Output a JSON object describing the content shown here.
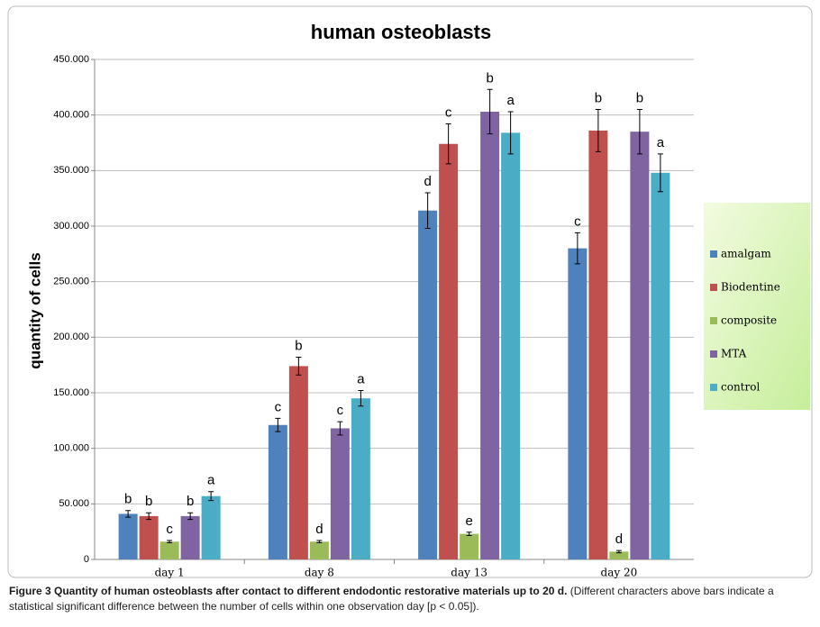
{
  "chart_data": {
    "type": "bar",
    "title": "human osteoblasts",
    "y_label": "quantity of cells",
    "categories": [
      "day 1",
      "day 8",
      "day 13",
      "day 20"
    ],
    "series": [
      {
        "name": "amalgam",
        "color": "#4f81bd",
        "values": [
          41000,
          121000,
          314000,
          280000
        ],
        "errors": [
          3000,
          6000,
          16000,
          14000
        ],
        "significance": [
          "b",
          "c",
          "d",
          "c"
        ]
      },
      {
        "name": "Biodentine",
        "color": "#c0504d",
        "values": [
          39000,
          174000,
          374000,
          386000
        ],
        "errors": [
          3000,
          8000,
          18000,
          19000
        ],
        "significance": [
          "b",
          "b",
          "c",
          "b"
        ]
      },
      {
        "name": "composite",
        "color": "#9bbb59",
        "values": [
          16000,
          16000,
          23000,
          7000
        ],
        "errors": [
          1000,
          1000,
          1500,
          1000
        ],
        "significance": [
          "c",
          "d",
          "e",
          "d"
        ]
      },
      {
        "name": "MTA",
        "color": "#8064a2",
        "values": [
          39000,
          118000,
          403000,
          385000
        ],
        "errors": [
          3000,
          6000,
          20000,
          20000
        ],
        "significance": [
          "b",
          "c",
          "b",
          "b"
        ]
      },
      {
        "name": "control",
        "color": "#4bacc6",
        "values": [
          57000,
          145000,
          384000,
          348000
        ],
        "errors": [
          4000,
          7000,
          19000,
          17000
        ],
        "significance": [
          "a",
          "a",
          "a",
          "a"
        ]
      }
    ],
    "ylim": [
      0,
      450000
    ],
    "yticks": [
      0,
      {
        "value": 50000,
        "label": "50.000"
      },
      {
        "value": 100000,
        "label": "100.000"
      },
      {
        "value": 150000,
        "label": "150.000"
      },
      {
        "value": 200000,
        "label": "200.000"
      },
      {
        "value": 250000,
        "label": "250.000"
      },
      {
        "value": 300000,
        "label": "300.000"
      },
      {
        "value": 350000,
        "label": "350.000"
      },
      {
        "value": 400000,
        "label": "400.000"
      },
      {
        "value": 450000,
        "label": "450.000"
      }
    ],
    "grid": true,
    "legend": "right"
  },
  "caption": {
    "title": "Figure 3 Quantity of human osteoblasts after contact to different endodontic restorative materials up to 20 d.",
    "text": "(Different characters above bars indicate a statistical significant difference between the number of cells within one observation day [p < 0.05])."
  }
}
